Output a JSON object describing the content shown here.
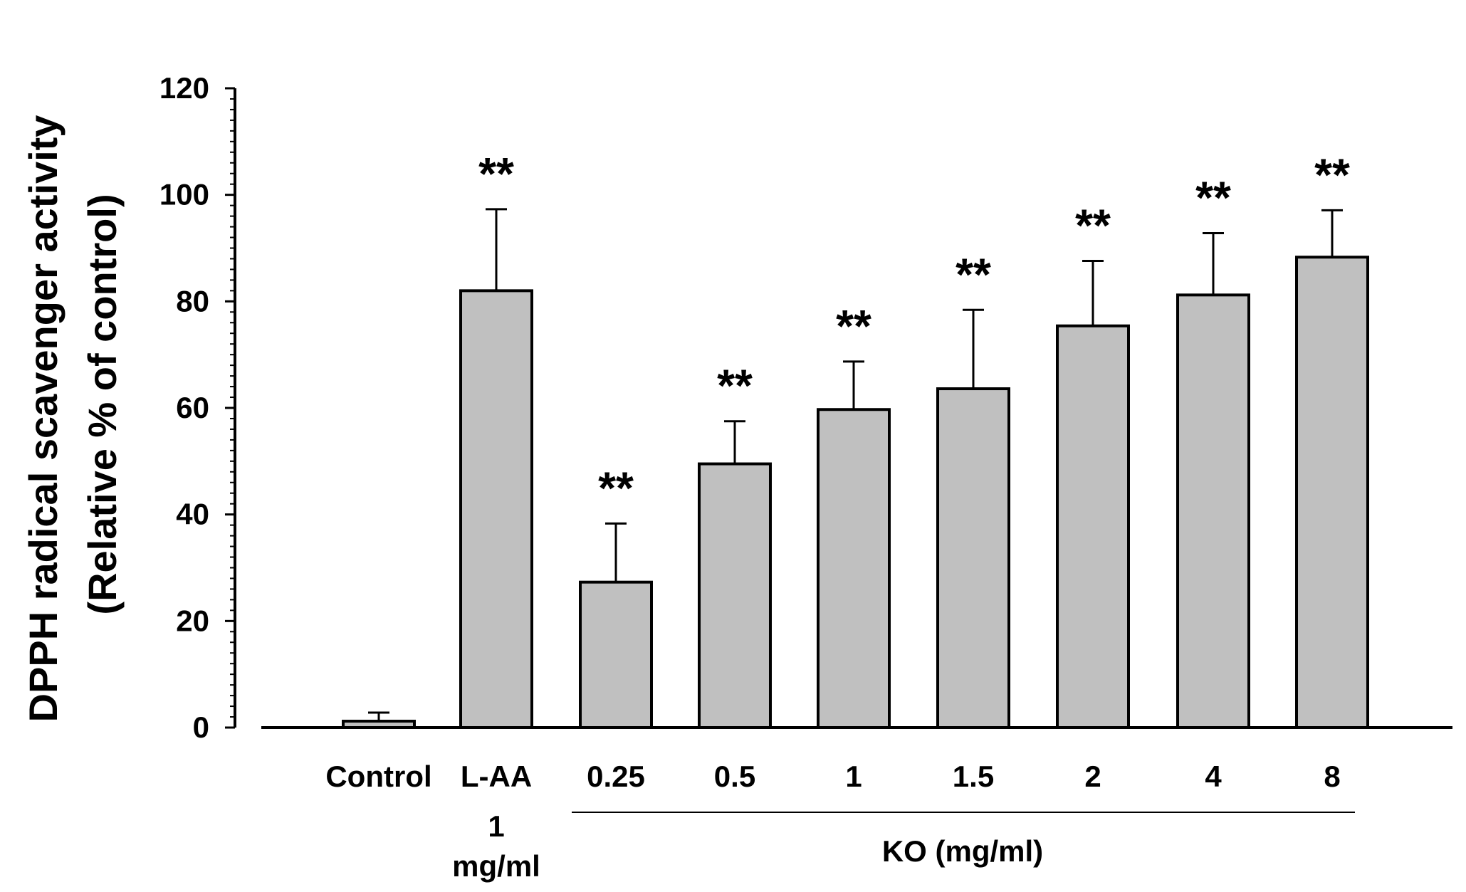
{
  "chart_data": {
    "type": "bar",
    "ylabel_line1": "DPPH radical scavenger activity",
    "ylabel_line2": "(Relative % of control)",
    "ylim": [
      0,
      120
    ],
    "yticks": [
      "0",
      "20",
      "40",
      "60",
      "80",
      "100",
      "120"
    ],
    "ytick_values": [
      0,
      20,
      40,
      60,
      80,
      100,
      120
    ],
    "categories": [
      "Control",
      "L-AA",
      "0.25",
      "0.5",
      "1",
      "1.5",
      "2",
      "4",
      "8"
    ],
    "values": [
      1.2,
      82,
      27.3,
      49.5,
      59.7,
      63.6,
      75.4,
      81.2,
      88.3
    ],
    "errors": [
      1.6,
      15.3,
      11,
      8,
      9,
      14.8,
      12.2,
      11.6,
      8.8
    ],
    "significance": [
      "",
      "**",
      "**",
      "**",
      "**",
      "**",
      "**",
      "**",
      "**"
    ],
    "laa_sublabel_line1": "1",
    "laa_sublabel_line2": "mg/ml",
    "group_label": "KO (mg/ml)",
    "colors": {
      "bar_fill": "#c0c0c0",
      "bar_stroke": "#000000",
      "axis": "#000000"
    }
  }
}
